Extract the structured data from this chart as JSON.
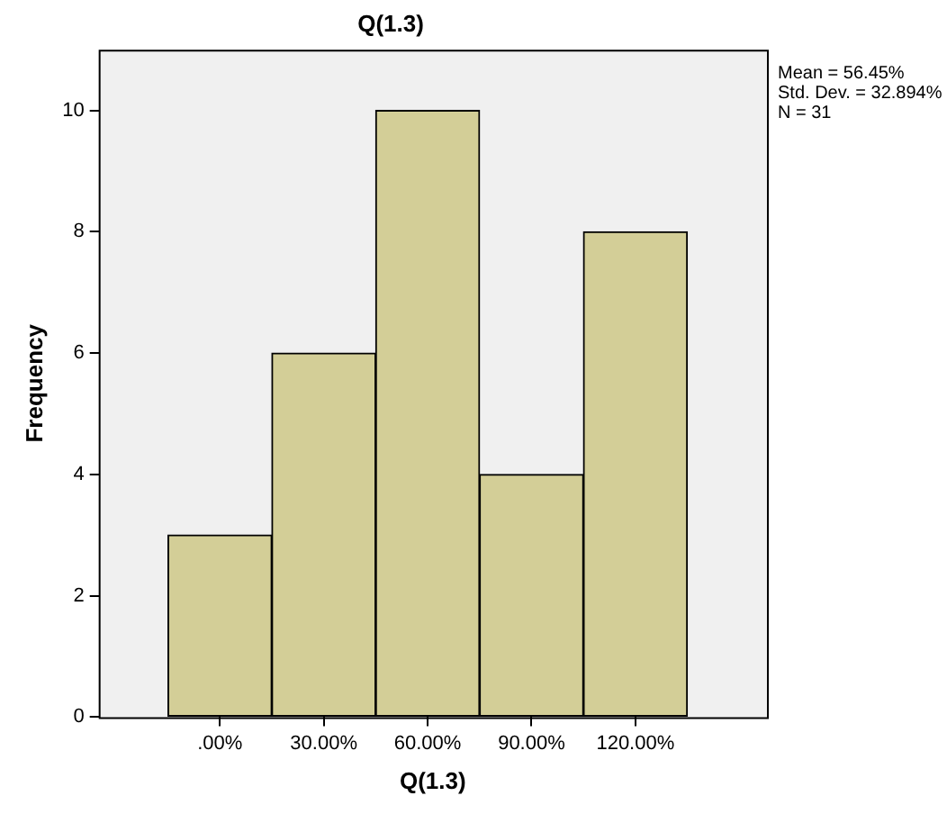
{
  "chart_data": {
    "type": "histogram",
    "title": "Q(1.3)",
    "xlabel": "Q(1.3)",
    "ylabel": "Frequency",
    "bins": [
      -15,
      15,
      45,
      75,
      105,
      135
    ],
    "values": [
      3,
      6,
      10,
      4,
      8
    ],
    "color": "#d3ce97",
    "xlim": [
      -35,
      158
    ],
    "xticks": [
      {
        "value": 0,
        "label": ".00%"
      },
      {
        "value": 30,
        "label": "30.00%"
      },
      {
        "value": 60,
        "label": "60.00%"
      },
      {
        "value": 90,
        "label": "90.00%"
      },
      {
        "value": 120,
        "label": "120.00%"
      }
    ],
    "ylim": [
      0,
      11
    ],
    "yticks": [
      0,
      2,
      4,
      6,
      8,
      10
    ],
    "grid": false,
    "legend": false,
    "annotations": [
      "Mean = 56.45%",
      "Std. Dev. = 32.894%",
      "N = 31"
    ]
  }
}
